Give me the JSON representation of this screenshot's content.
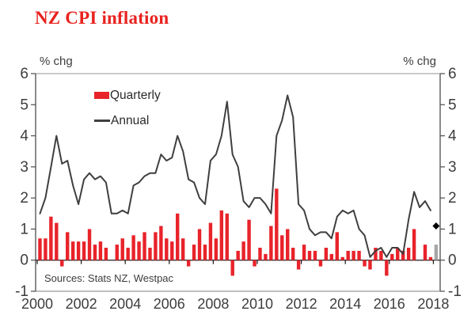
{
  "title": {
    "text": "NZ CPI inflation"
  },
  "axis": {
    "unit_left": "% chg",
    "unit_right": "% chg"
  },
  "legend": {
    "quarterly_label": "Quarterly",
    "annual_label": "Annual"
  },
  "source_note": "Sources: Stats NZ, Westpac",
  "colors": {
    "title": "#e8231f",
    "bar": "#e8232a",
    "line": "#3f3f3f",
    "forecast_bar": "#a6a6a6",
    "diamond": "#000000",
    "axis_text": "#3d3d3d",
    "frame_light": "#aaaaaa",
    "frame_dark": "#4d4d4d",
    "zero_line": "#1a1a1a"
  },
  "chart_data": {
    "type": "bar",
    "subtype": "bar+line combo, quarterly x-axis",
    "title": "NZ CPI inflation",
    "ylabel": "% chg",
    "ylim": [
      -1,
      6
    ],
    "yticks": [
      -1,
      0,
      1,
      2,
      3,
      4,
      5,
      6
    ],
    "xticks": [
      2000,
      2002,
      2004,
      2006,
      2008,
      2010,
      2012,
      2014,
      2016,
      2018
    ],
    "start_period": "2000Q1",
    "grid": false,
    "legend_position": "top-left inside plot",
    "series": [
      {
        "name": "Quarterly",
        "type": "bar",
        "values": [
          0.7,
          0.7,
          1.4,
          1.2,
          -0.2,
          0.9,
          0.6,
          0.6,
          0.6,
          1.0,
          0.5,
          0.6,
          0.4,
          0.0,
          0.5,
          0.7,
          0.4,
          0.8,
          0.6,
          0.9,
          0.4,
          0.9,
          1.1,
          0.7,
          0.6,
          1.5,
          0.7,
          -0.2,
          0.5,
          1.0,
          0.5,
          1.2,
          0.7,
          1.6,
          1.5,
          -0.5,
          0.3,
          0.6,
          1.3,
          -0.2,
          0.4,
          0.2,
          1.1,
          2.3,
          0.8,
          1.0,
          0.4,
          -0.3,
          0.5,
          0.3,
          0.3,
          -0.2,
          0.4,
          0.2,
          0.9,
          0.1,
          0.3,
          0.3,
          0.3,
          -0.2,
          -0.3,
          0.4,
          0.3,
          -0.5,
          0.2,
          0.4,
          0.3,
          0.4,
          1.0,
          0.0,
          0.5,
          0.1
        ]
      },
      {
        "name": "Annual",
        "type": "line",
        "values": [
          1.5,
          2.0,
          3.0,
          4.0,
          3.1,
          3.2,
          2.4,
          1.8,
          2.6,
          2.8,
          2.6,
          2.7,
          2.5,
          1.5,
          1.5,
          1.6,
          1.5,
          2.4,
          2.5,
          2.7,
          2.8,
          2.8,
          3.4,
          3.2,
          3.3,
          4.0,
          3.5,
          2.6,
          2.5,
          2.0,
          1.8,
          3.2,
          3.4,
          4.0,
          5.1,
          3.4,
          3.0,
          1.9,
          1.7,
          2.0,
          2.0,
          1.8,
          1.5,
          4.0,
          4.5,
          5.3,
          4.6,
          1.8,
          1.6,
          1.0,
          0.8,
          0.9,
          0.9,
          0.7,
          1.4,
          1.6,
          1.5,
          1.6,
          1.0,
          0.8,
          0.1,
          0.3,
          0.4,
          0.1,
          0.4,
          0.4,
          0.2,
          1.3,
          2.2,
          1.7,
          1.9,
          1.6
        ]
      }
    ],
    "forecast": {
      "period": "2018Q1",
      "quarterly_bar_value": 0.5,
      "annual_diamond_value": 1.1
    }
  }
}
